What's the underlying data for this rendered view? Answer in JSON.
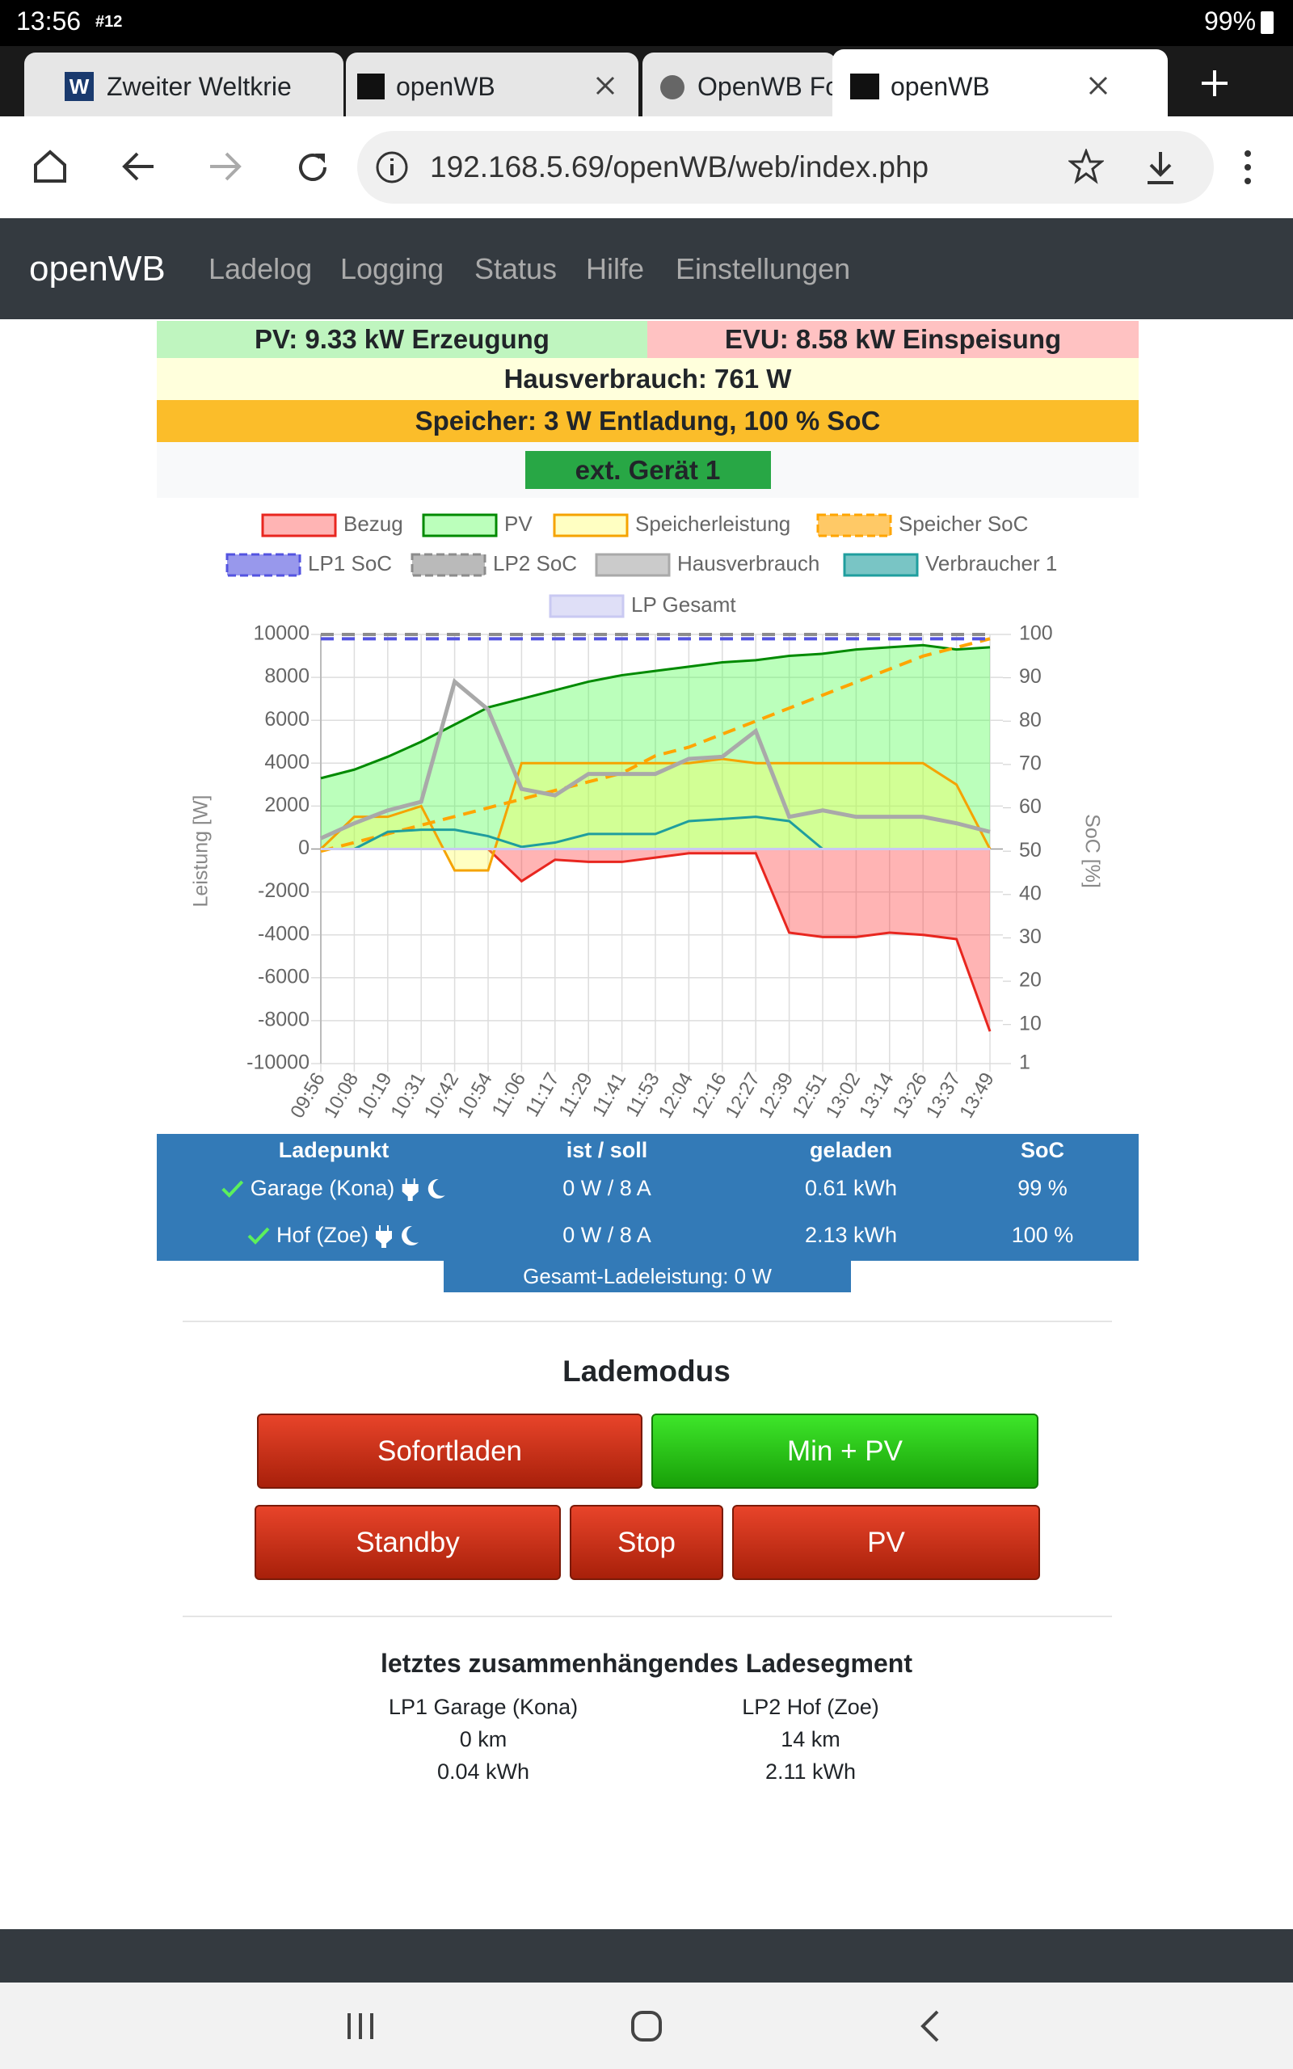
{
  "status_bar": {
    "time": "13:56",
    "notification": "#12",
    "battery": "99%"
  },
  "tabs": [
    {
      "icon": "W",
      "title": "Zweiter Weltkrie"
    },
    {
      "title": "openWB"
    },
    {
      "title": "OpenWB For"
    },
    {
      "title": "openWB"
    }
  ],
  "address_bar": {
    "url": "192.168.5.69/openWB/web/index.php"
  },
  "navbar": {
    "brand": "openWB",
    "links": [
      "Ladelog",
      "Logging",
      "Status",
      "Hilfe",
      "Einstellungen"
    ]
  },
  "summary": {
    "pv": "PV: 9.33 kW Erzeugung",
    "evu": "EVU: 8.58 kW Einspeisung",
    "house": "Hausverbrauch: 761 W",
    "storage": "Speicher: 3 W Entladung, 100 % SoC",
    "device": "ext. Gerät 1"
  },
  "chart_data": {
    "type": "line",
    "y_label": "Leistung [W]",
    "y2_label": "SoC [%]",
    "categories": [
      "09:56",
      "10:08",
      "10:19",
      "10:31",
      "10:42",
      "10:54",
      "11:06",
      "11:17",
      "11:29",
      "11:41",
      "11:53",
      "12:04",
      "12:16",
      "12:27",
      "12:39",
      "12:51",
      "13:02",
      "13:14",
      "13:26",
      "13:37",
      "13:49"
    ],
    "ylim": [
      -10000,
      10000
    ],
    "yticks": [
      -10000,
      -8000,
      -6000,
      -4000,
      -2000,
      0,
      2000,
      4000,
      6000,
      8000,
      10000
    ],
    "y2lim": [
      1,
      100
    ],
    "y2ticks": [
      1,
      10,
      20,
      30,
      40,
      50,
      60,
      70,
      80,
      90,
      100
    ],
    "grid": true,
    "series": [
      {
        "name": "Bezug",
        "color": "#e8261f",
        "fill_color": "rgba(255,40,40,0.35)",
        "values": [
          0,
          0,
          0,
          0,
          0,
          0,
          -1500,
          -500,
          -600,
          -600,
          -400,
          -200,
          -200,
          -200,
          -3900,
          -4100,
          -4100,
          -3900,
          -4000,
          -4200,
          -8500
        ]
      },
      {
        "name": "PV",
        "color": "#008a00",
        "fill_color": "rgba(60,255,60,0.35)",
        "values": [
          3300,
          3700,
          4300,
          5000,
          5800,
          6600,
          7000,
          7400,
          7800,
          8100,
          8300,
          8500,
          8700,
          8800,
          9000,
          9100,
          9300,
          9400,
          9500,
          9300,
          9400
        ]
      },
      {
        "name": "Speicherleistung",
        "color": "#f5a300",
        "fill_color": "rgba(255,255,80,0.35)",
        "values": [
          0,
          1500,
          1500,
          2000,
          -1000,
          -1000,
          4000,
          4000,
          4000,
          4000,
          4000,
          4000,
          4200,
          4000,
          4000,
          4000,
          4000,
          4000,
          4000,
          3000,
          0
        ]
      },
      {
        "name": "Speicher SoC",
        "color": "#ffa500",
        "dashed": true,
        "axis": "y2",
        "values": [
          50,
          52,
          54,
          56,
          58,
          60,
          62,
          64,
          66,
          68,
          72,
          74,
          77,
          80,
          83,
          86,
          89,
          92,
          95,
          97,
          99
        ]
      },
      {
        "name": "LP1 SoC",
        "color": "#5353e0",
        "dashed": true,
        "axis": "y2",
        "values": [
          99,
          99,
          99,
          99,
          99,
          99,
          99,
          99,
          99,
          99,
          99,
          99,
          99,
          99,
          99,
          99,
          99,
          99,
          99,
          99,
          99
        ]
      },
      {
        "name": "LP2 SoC",
        "color": "#8c8c8c",
        "dashed": true,
        "axis": "y2",
        "values": [
          100,
          100,
          100,
          100,
          100,
          100,
          100,
          100,
          100,
          100,
          100,
          100,
          100,
          100,
          100,
          100,
          100,
          100,
          100,
          100,
          100
        ]
      },
      {
        "name": "Hausverbrauch",
        "color": "#a9a9a9",
        "values": [
          500,
          1200,
          1800,
          2200,
          7800,
          6500,
          2800,
          2500,
          3500,
          3500,
          3500,
          4200,
          4300,
          5500,
          1500,
          1800,
          1500,
          1500,
          1500,
          1200,
          800
        ]
      },
      {
        "name": "Verbraucher 1",
        "color": "#1f9e9e",
        "values": [
          0,
          0,
          800,
          900,
          900,
          600,
          100,
          300,
          700,
          700,
          700,
          1300,
          1400,
          1500,
          1300,
          0,
          0,
          0,
          0,
          0,
          0
        ]
      },
      {
        "name": "LP Gesamt",
        "color": "#c9c9f2",
        "values": [
          0,
          0,
          0,
          0,
          0,
          0,
          0,
          0,
          0,
          0,
          0,
          0,
          0,
          0,
          0,
          0,
          0,
          0,
          0,
          0,
          0
        ]
      }
    ]
  },
  "chargepoints": {
    "headers": [
      "Ladepunkt",
      "ist / soll",
      "geladen",
      "SoC"
    ],
    "rows": [
      [
        "Garage (Kona)",
        "0 W / 8 A",
        "0.61 kWh",
        "99 %"
      ],
      [
        "Hof (Zoe)",
        "0 W / 8 A",
        "2.13 kWh",
        "100 %"
      ]
    ],
    "total": "Gesamt-Ladeleistung: 0 W"
  },
  "charge_mode": {
    "title": "Lademodus",
    "buttons": [
      "Sofortladen",
      "Min + PV",
      "Standby",
      "Stop",
      "PV"
    ]
  },
  "last_segment": {
    "title": "letztes zusammenhängendes Ladesegment",
    "columns": [
      {
        "name": "LP1 Garage (Kona)",
        "distance": "0 km",
        "energy": "0.04 kWh"
      },
      {
        "name": "LP2 Hof (Zoe)",
        "distance": "14 km",
        "energy": "2.11 kWh"
      }
    ]
  }
}
